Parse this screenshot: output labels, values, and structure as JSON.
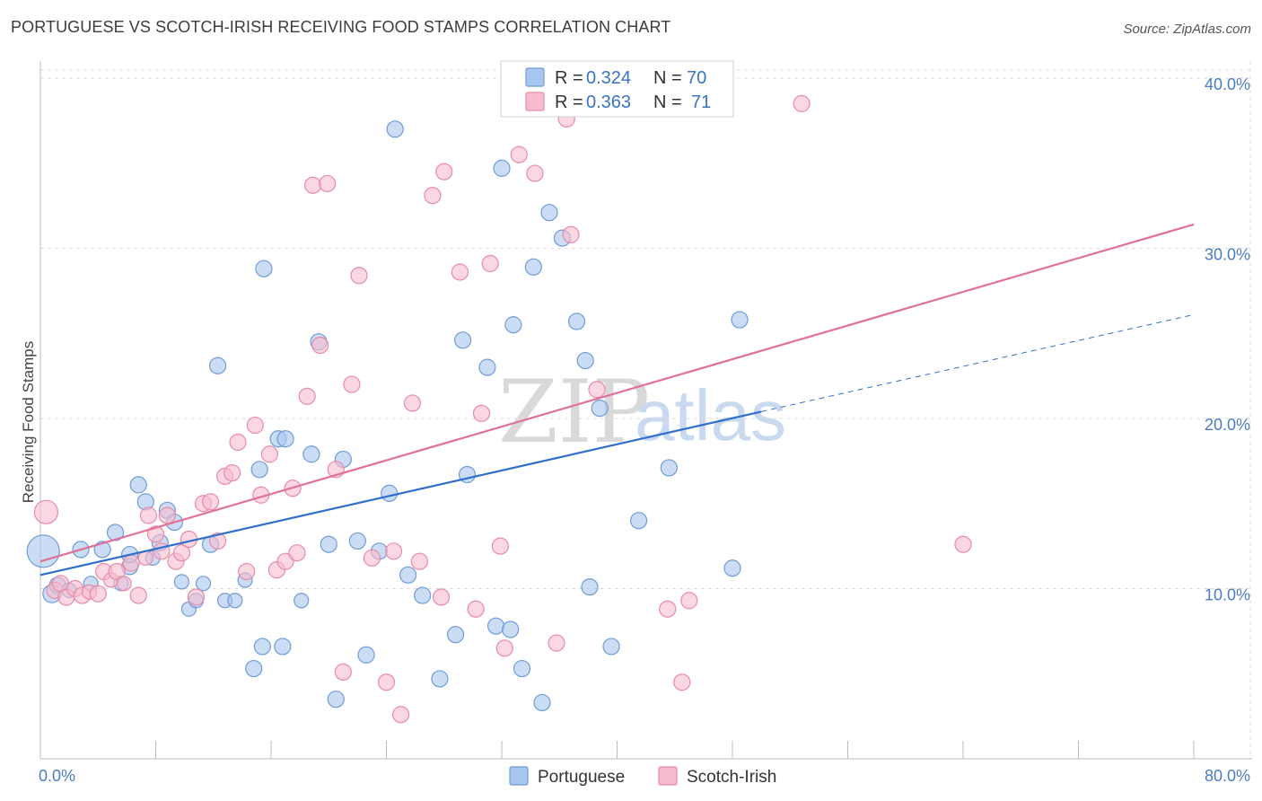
{
  "title": "PORTUGUESE VS SCOTCH-IRISH RECEIVING FOOD STAMPS CORRELATION CHART",
  "source": "Source: ZipAtlas.com",
  "watermark": {
    "zip": "ZIP",
    "atlas": "atlas"
  },
  "colors": {
    "portuguese_fill": "#a9c6ef",
    "portuguese_stroke": "#6f9bd8",
    "portuguese_line": "#2f6fcc",
    "scotch_fill": "#f6bccd",
    "scotch_stroke": "#e88aa8",
    "scotch_line": "#e0709a",
    "axis_text": "#4a7cc4",
    "grid": "#dddddd"
  },
  "legend": {
    "rows": [
      {
        "r_label": "R =",
        "r_value": "0.324",
        "n_label": "N =",
        "n_value": "70"
      },
      {
        "r_label": "R =",
        "r_value": "0.363",
        "n_label": "N =",
        "n_value": "71"
      }
    ]
  },
  "bottom_legend": [
    "Portuguese",
    "Scotch-Irish"
  ],
  "chart_data": {
    "type": "scatter",
    "ylabel": "Receiving Food Stamps",
    "xlim": [
      0,
      80
    ],
    "ylim": [
      0,
      41
    ],
    "x_tick_labels": [
      {
        "value": 0,
        "label": "0.0%"
      },
      {
        "value": 80,
        "label": "80.0%"
      }
    ],
    "y_tick_labels": [
      {
        "value": 10,
        "label": "10.0%"
      },
      {
        "value": 20,
        "label": "20.0%"
      },
      {
        "value": 30,
        "label": "30.0%"
      },
      {
        "value": 40,
        "label": "40.0%"
      }
    ],
    "legend_position": "top-center",
    "grid": true,
    "series": [
      {
        "name": "Portuguese",
        "r": 0.324,
        "n": 70,
        "trend": {
          "x0": 0,
          "y0": 10.8,
          "x1": 50,
          "y1": 20.4,
          "dashed_to_x": 80,
          "dashed_to_y": 26.1
        },
        "points": [
          [
            0.2,
            12.2,
            18
          ],
          [
            0.8,
            9.7,
            10
          ],
          [
            1.2,
            10.2,
            9
          ],
          [
            2.0,
            9.9,
            8
          ],
          [
            2.8,
            12.3,
            9
          ],
          [
            3.5,
            10.3,
            8
          ],
          [
            4.3,
            12.3,
            9
          ],
          [
            5.2,
            13.3,
            9
          ],
          [
            5.6,
            10.3,
            8
          ],
          [
            6.2,
            11.3,
            9
          ],
          [
            6.2,
            12.0,
            9
          ],
          [
            6.8,
            16.1,
            9
          ],
          [
            7.3,
            15.1,
            9
          ],
          [
            7.8,
            11.8,
            8
          ],
          [
            8.3,
            12.7,
            9
          ],
          [
            8.8,
            14.6,
            9
          ],
          [
            9.3,
            13.9,
            9
          ],
          [
            9.8,
            10.4,
            8
          ],
          [
            10.3,
            8.8,
            8
          ],
          [
            10.8,
            9.3,
            8
          ],
          [
            11.3,
            10.3,
            8
          ],
          [
            11.8,
            12.6,
            9
          ],
          [
            12.3,
            23.1,
            9
          ],
          [
            12.8,
            9.3,
            8
          ],
          [
            13.5,
            9.3,
            8
          ],
          [
            14.2,
            10.5,
            8
          ],
          [
            14.8,
            5.3,
            9
          ],
          [
            15.2,
            17.0,
            9
          ],
          [
            15.4,
            6.6,
            9
          ],
          [
            15.5,
            28.8,
            9
          ],
          [
            16.5,
            18.8,
            9
          ],
          [
            16.8,
            6.6,
            9
          ],
          [
            17.0,
            18.8,
            9
          ],
          [
            18.1,
            9.3,
            8
          ],
          [
            18.8,
            17.9,
            9
          ],
          [
            19.3,
            24.5,
            9
          ],
          [
            20.0,
            12.6,
            9
          ],
          [
            20.5,
            3.5,
            9
          ],
          [
            21.0,
            17.6,
            9
          ],
          [
            22.0,
            12.8,
            9
          ],
          [
            22.6,
            6.1,
            9
          ],
          [
            23.5,
            12.2,
            9
          ],
          [
            24.6,
            37.0,
            9
          ],
          [
            24.2,
            15.6,
            9
          ],
          [
            25.5,
            10.8,
            9
          ],
          [
            26.5,
            9.6,
            9
          ],
          [
            27.7,
            4.7,
            9
          ],
          [
            28.8,
            7.3,
            9
          ],
          [
            29.3,
            24.6,
            9
          ],
          [
            29.6,
            16.7,
            9
          ],
          [
            31.0,
            23.0,
            9
          ],
          [
            31.6,
            7.8,
            9
          ],
          [
            32.0,
            34.7,
            9
          ],
          [
            32.6,
            7.6,
            9
          ],
          [
            32.8,
            25.5,
            9
          ],
          [
            33.4,
            5.3,
            9
          ],
          [
            34.2,
            28.9,
            9
          ],
          [
            34.8,
            3.3,
            9
          ],
          [
            35.3,
            32.1,
            9
          ],
          [
            36.2,
            30.6,
            9
          ],
          [
            37.2,
            25.7,
            9
          ],
          [
            37.8,
            23.4,
            9
          ],
          [
            38.1,
            10.1,
            9
          ],
          [
            38.8,
            20.6,
            9
          ],
          [
            39.6,
            6.6,
            9
          ],
          [
            41.5,
            14.0,
            9
          ],
          [
            43.6,
            17.1,
            9
          ],
          [
            48.0,
            11.2,
            9
          ],
          [
            48.5,
            25.8,
            9
          ],
          [
            35.8,
            10.0,
            0
          ]
        ]
      },
      {
        "name": "Scotch-Irish",
        "r": 0.363,
        "n": 71,
        "trend": {
          "x0": 0,
          "y0": 11.6,
          "x1": 80,
          "y1": 31.4
        },
        "points": [
          [
            0.4,
            14.5,
            13
          ],
          [
            1.0,
            9.9,
            9
          ],
          [
            1.4,
            10.3,
            9
          ],
          [
            1.8,
            9.5,
            9
          ],
          [
            2.4,
            10.0,
            9
          ],
          [
            2.9,
            9.6,
            9
          ],
          [
            3.4,
            9.8,
            8
          ],
          [
            4.0,
            9.7,
            9
          ],
          [
            4.4,
            11.0,
            9
          ],
          [
            4.9,
            10.5,
            8
          ],
          [
            5.3,
            11.0,
            9
          ],
          [
            5.8,
            10.3,
            8
          ],
          [
            6.3,
            11.5,
            9
          ],
          [
            6.8,
            9.6,
            9
          ],
          [
            7.3,
            11.8,
            8
          ],
          [
            7.5,
            14.3,
            9
          ],
          [
            8.0,
            13.2,
            9
          ],
          [
            8.4,
            12.2,
            9
          ],
          [
            8.8,
            14.3,
            9
          ],
          [
            9.4,
            11.6,
            9
          ],
          [
            9.8,
            12.1,
            9
          ],
          [
            10.3,
            12.9,
            9
          ],
          [
            10.8,
            9.5,
            9
          ],
          [
            11.3,
            15.0,
            9
          ],
          [
            11.8,
            15.1,
            9
          ],
          [
            12.3,
            12.8,
            9
          ],
          [
            12.8,
            16.6,
            9
          ],
          [
            13.3,
            16.8,
            9
          ],
          [
            13.7,
            18.6,
            9
          ],
          [
            14.3,
            11.0,
            9
          ],
          [
            14.9,
            19.6,
            9
          ],
          [
            15.3,
            15.5,
            9
          ],
          [
            15.9,
            17.9,
            9
          ],
          [
            16.4,
            11.1,
            9
          ],
          [
            17.0,
            11.6,
            9
          ],
          [
            17.5,
            15.9,
            9
          ],
          [
            17.8,
            12.1,
            9
          ],
          [
            18.5,
            21.3,
            9
          ],
          [
            18.9,
            33.7,
            9
          ],
          [
            19.4,
            24.3,
            9
          ],
          [
            19.9,
            33.8,
            9
          ],
          [
            20.5,
            17.0,
            9
          ],
          [
            21.0,
            5.1,
            9
          ],
          [
            21.6,
            22.0,
            9
          ],
          [
            22.1,
            28.4,
            9
          ],
          [
            23.0,
            11.8,
            9
          ],
          [
            24.0,
            4.5,
            9
          ],
          [
            24.5,
            12.2,
            9
          ],
          [
            25.0,
            2.6,
            9
          ],
          [
            25.8,
            20.9,
            9
          ],
          [
            26.3,
            11.6,
            9
          ],
          [
            27.2,
            33.1,
            9
          ],
          [
            27.8,
            9.5,
            9
          ],
          [
            28.0,
            34.5,
            9
          ],
          [
            29.1,
            28.6,
            9
          ],
          [
            30.2,
            8.8,
            9
          ],
          [
            30.6,
            20.3,
            9
          ],
          [
            31.2,
            29.1,
            9
          ],
          [
            31.9,
            12.5,
            9
          ],
          [
            32.2,
            6.5,
            9
          ],
          [
            33.2,
            35.5,
            9
          ],
          [
            34.3,
            34.4,
            9
          ],
          [
            35.8,
            6.8,
            9
          ],
          [
            36.5,
            37.6,
            9
          ],
          [
            36.8,
            30.8,
            9
          ],
          [
            38.6,
            21.7,
            9
          ],
          [
            43.5,
            8.8,
            9
          ],
          [
            44.5,
            4.5,
            9
          ],
          [
            45.0,
            9.3,
            9
          ],
          [
            52.8,
            38.5,
            9
          ],
          [
            64.0,
            12.6,
            9
          ]
        ]
      }
    ]
  }
}
